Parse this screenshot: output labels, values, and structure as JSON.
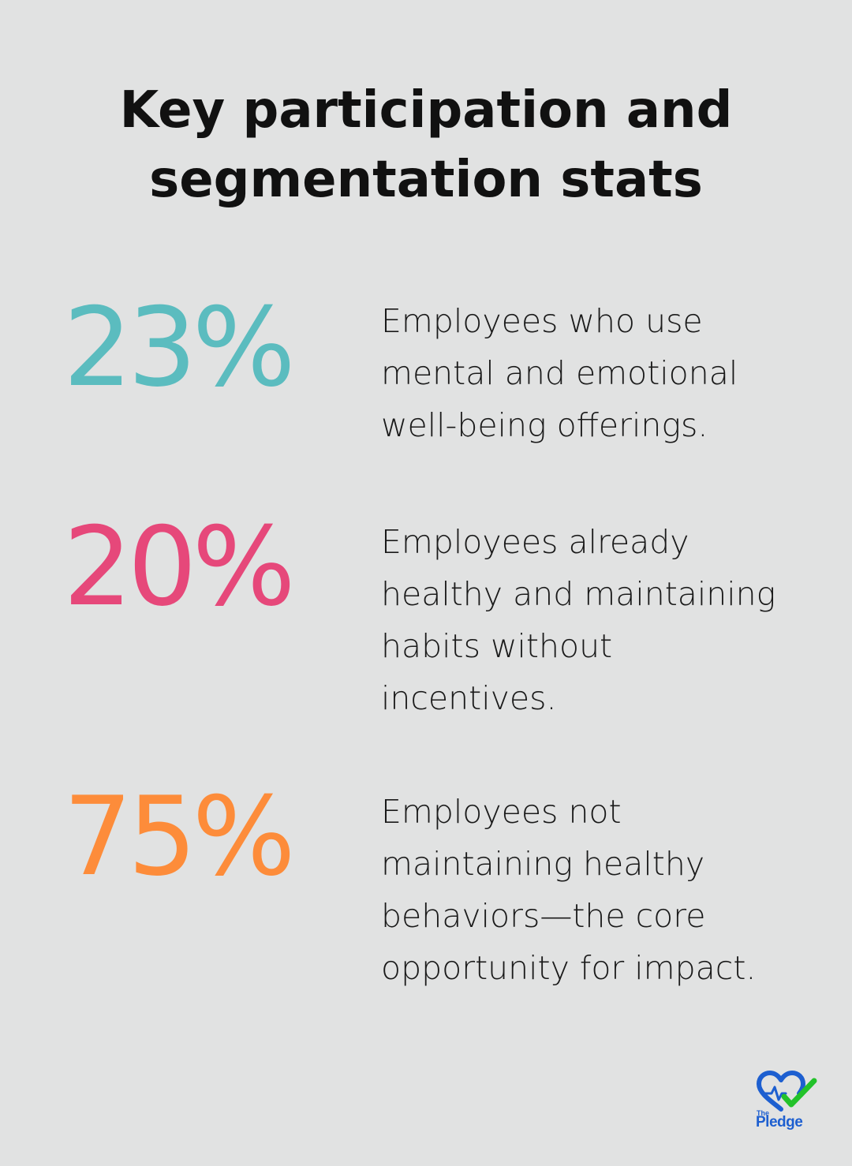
{
  "title": {
    "line1": "Key participation and",
    "line2": "segmentation stats"
  },
  "stats": [
    {
      "value": "23%",
      "color": "#5bbcbf",
      "description": "Employees who use\nmental and emotional\nwell-being offerings."
    },
    {
      "value": "20%",
      "color": "#e6487a",
      "description": "Employees already\nhealthy and maintaining\nhabits without\nincentives."
    },
    {
      "value": "75%",
      "color": "#fd8c3a",
      "description": "Employees not\nmaintaining healthy\nbehaviors—the core\nopportunity for impact."
    }
  ],
  "logo": {
    "small_text": "The",
    "brand_text": "Pledge",
    "heart_color": "#1d5fd0",
    "check_color": "#22c22a",
    "icon": "heart-check-icon"
  }
}
